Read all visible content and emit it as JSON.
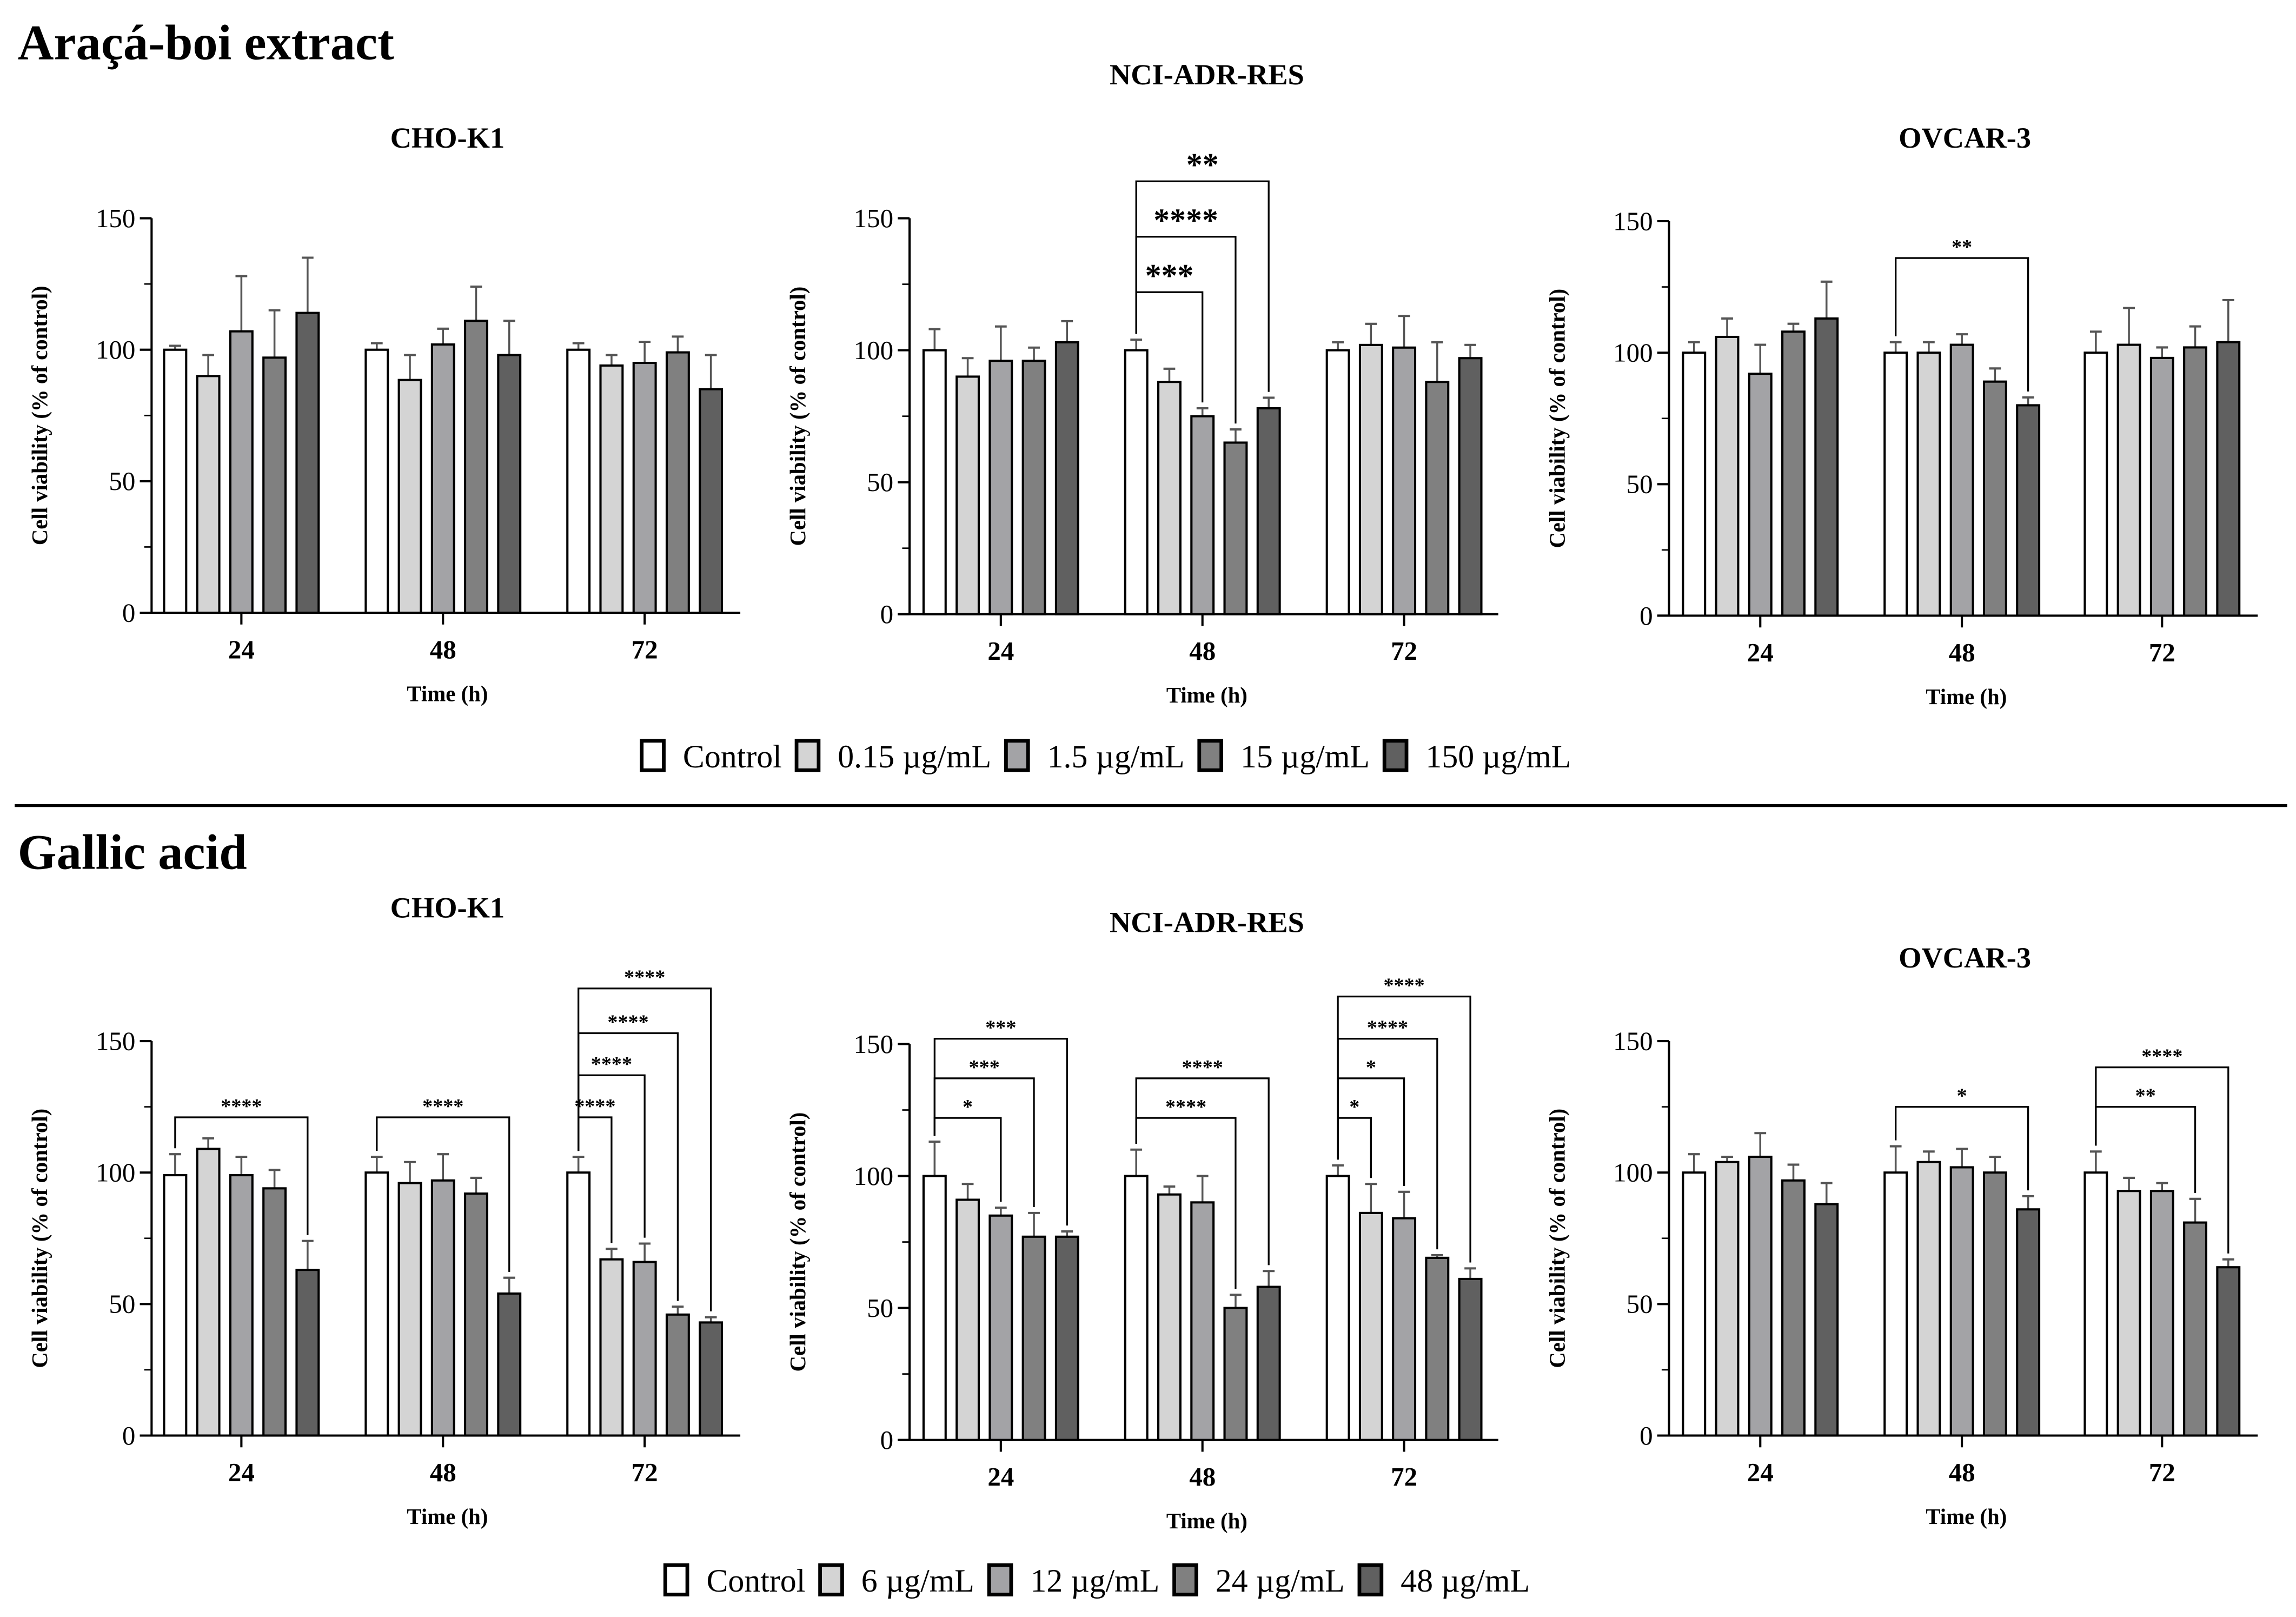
{
  "sections": [
    {
      "heading": "Araçá-boi extract",
      "legend": [
        "Control",
        "0.15 µg/mL",
        "1.5 µg/mL",
        "15 µg/mL",
        "150 µg/mL"
      ]
    },
    {
      "heading": "Gallic acid",
      "legend": [
        "Control",
        "6 µg/mL",
        "12 µg/mL",
        "24 µg/mL",
        "48 µg/mL"
      ]
    }
  ],
  "colors": [
    "#ffffff",
    "#d4d4d4",
    "#a3a3a6",
    "#808080",
    "#606060"
  ],
  "chart_data": [
    {
      "type": "bar",
      "section": 0,
      "title": "CHO-K1",
      "xlabel": "Time (h)",
      "ylabel": "Cell viability (% of control)",
      "categories": [
        "24",
        "48",
        "72"
      ],
      "ylim": [
        0,
        150
      ],
      "yticks": [
        "0",
        "50",
        "100",
        "150"
      ],
      "series": [
        {
          "name": "Control",
          "values": [
            100,
            100,
            100
          ],
          "err": [
            101.5,
            102.5,
            102.5
          ]
        },
        {
          "name": "0.15 µg/mL",
          "values": [
            90,
            88.5,
            94
          ],
          "err": [
            98,
            98,
            98
          ]
        },
        {
          "name": "1.5 µg/mL",
          "values": [
            107,
            102,
            95
          ],
          "err": [
            128,
            108,
            103
          ]
        },
        {
          "name": "15 µg/mL",
          "values": [
            97,
            111,
            99
          ],
          "err": [
            115,
            124,
            105
          ]
        },
        {
          "name": "150 µg/mL",
          "values": [
            114,
            98,
            85
          ],
          "err": [
            135,
            111,
            98
          ]
        }
      ],
      "sig": []
    },
    {
      "type": "bar",
      "section": 0,
      "title": "NCI-ADR-RES",
      "xlabel": "Time (h)",
      "ylabel": "Cell viability (% of control)",
      "categories": [
        "24",
        "48",
        "72"
      ],
      "ylim": [
        0,
        150
      ],
      "yticks": [
        "0",
        "50",
        "100",
        "150"
      ],
      "series": [
        {
          "name": "Control",
          "values": [
            100,
            100,
            100
          ],
          "err": [
            108,
            104,
            103
          ]
        },
        {
          "name": "0.15 µg/mL",
          "values": [
            90,
            88,
            102
          ],
          "err": [
            97,
            93,
            110
          ]
        },
        {
          "name": "1.5 µg/mL",
          "values": [
            96,
            75,
            101
          ],
          "err": [
            109,
            78,
            113
          ]
        },
        {
          "name": "15 µg/mL",
          "values": [
            96,
            65,
            88
          ],
          "err": [
            101,
            70,
            103
          ]
        },
        {
          "name": "150 µg/mL",
          "values": [
            103,
            78,
            97
          ],
          "err": [
            111,
            82,
            102
          ]
        }
      ],
      "sig": [
        {
          "group": 1,
          "to": 2,
          "level": 122,
          "label": "***"
        },
        {
          "group": 1,
          "to": 3,
          "level": 143,
          "label": "****"
        },
        {
          "group": 1,
          "to": 4,
          "level": 164,
          "label": "**"
        }
      ]
    },
    {
      "type": "bar",
      "section": 0,
      "title": "OVCAR-3",
      "xlabel": "Time (h)",
      "ylabel": "Cell viability (% of control)",
      "categories": [
        "24",
        "48",
        "72"
      ],
      "ylim": [
        0,
        150
      ],
      "yticks": [
        "0",
        "50",
        "100",
        "150"
      ],
      "series": [
        {
          "name": "Control",
          "values": [
            100,
            100,
            100
          ],
          "err": [
            104,
            104,
            108
          ]
        },
        {
          "name": "0.15 µg/mL",
          "values": [
            106,
            100,
            103
          ],
          "err": [
            113,
            104,
            117
          ]
        },
        {
          "name": "1.5 µg/mL",
          "values": [
            92,
            103,
            98
          ],
          "err": [
            103,
            107,
            102
          ]
        },
        {
          "name": "15 µg/mL",
          "values": [
            108,
            89,
            102
          ],
          "err": [
            111,
            94,
            110
          ]
        },
        {
          "name": "150 µg/mL",
          "values": [
            113,
            80,
            104
          ],
          "err": [
            127,
            83,
            120
          ]
        }
      ],
      "sig": [
        {
          "group": 1,
          "to": 4,
          "level": 136,
          "label": "**"
        }
      ]
    },
    {
      "type": "bar",
      "section": 1,
      "title": "CHO-K1",
      "xlabel": "Time (h)",
      "ylabel": "Cell viability (% of control)",
      "categories": [
        "24",
        "48",
        "72"
      ],
      "ylim": [
        0,
        150
      ],
      "yticks": [
        "0",
        "50",
        "100",
        "150"
      ],
      "series": [
        {
          "name": "Control",
          "values": [
            99,
            100,
            100
          ],
          "err": [
            107,
            106,
            106
          ]
        },
        {
          "name": "6 µg/mL",
          "values": [
            109,
            96,
            67
          ],
          "err": [
            113,
            104,
            71
          ]
        },
        {
          "name": "12 µg/mL",
          "values": [
            99,
            97,
            66
          ],
          "err": [
            106,
            107,
            73
          ]
        },
        {
          "name": "24 µg/mL",
          "values": [
            94,
            92,
            46
          ],
          "err": [
            101,
            98,
            49
          ]
        },
        {
          "name": "48 µg/mL",
          "values": [
            63,
            54,
            43
          ],
          "err": [
            74,
            60,
            45
          ]
        }
      ],
      "sig": [
        {
          "group": 0,
          "to": 4,
          "level": 121,
          "label": "****"
        },
        {
          "group": 1,
          "to": 4,
          "level": 121,
          "label": "****"
        },
        {
          "group": 2,
          "to": 1,
          "level": 121,
          "label": "****"
        },
        {
          "group": 2,
          "to": 2,
          "level": 137,
          "label": "****"
        },
        {
          "group": 2,
          "to": 3,
          "level": 153,
          "label": "****"
        },
        {
          "group": 2,
          "to": 4,
          "level": 170,
          "label": "****"
        }
      ]
    },
    {
      "type": "bar",
      "section": 1,
      "title": "NCI-ADR-RES",
      "xlabel": "Time (h)",
      "ylabel": "Cell viability (% of control)",
      "categories": [
        "24",
        "48",
        "72"
      ],
      "ylim": [
        0,
        150
      ],
      "yticks": [
        "0",
        "50",
        "100",
        "150"
      ],
      "series": [
        {
          "name": "Control",
          "values": [
            100,
            100,
            100
          ],
          "err": [
            113,
            110,
            104
          ]
        },
        {
          "name": "6 µg/mL",
          "values": [
            91,
            93,
            86
          ],
          "err": [
            97,
            96,
            97
          ]
        },
        {
          "name": "12 µg/mL",
          "values": [
            85,
            90,
            84
          ],
          "err": [
            88,
            100,
            94
          ]
        },
        {
          "name": "24 µg/mL",
          "values": [
            77,
            50,
            69
          ],
          "err": [
            86,
            55,
            70
          ]
        },
        {
          "name": "48 µg/mL",
          "values": [
            77,
            58,
            61
          ],
          "err": [
            79,
            64,
            65
          ]
        }
      ],
      "sig": [
        {
          "group": 0,
          "to": 2,
          "level": 122,
          "label": "*"
        },
        {
          "group": 0,
          "to": 3,
          "level": 137,
          "label": "***"
        },
        {
          "group": 0,
          "to": 4,
          "level": 152,
          "label": "***"
        },
        {
          "group": 1,
          "to": 3,
          "level": 122,
          "label": "****"
        },
        {
          "group": 1,
          "to": 4,
          "level": 137,
          "label": "****"
        },
        {
          "group": 2,
          "to": 1,
          "level": 122,
          "label": "*"
        },
        {
          "group": 2,
          "to": 2,
          "level": 137,
          "label": "*"
        },
        {
          "group": 2,
          "to": 3,
          "level": 152,
          "label": "****"
        },
        {
          "group": 2,
          "to": 4,
          "level": 168,
          "label": "****"
        }
      ]
    },
    {
      "type": "bar",
      "section": 1,
      "title": "OVCAR-3",
      "xlabel": "Time (h)",
      "ylabel": "Cell viability (% of control)",
      "categories": [
        "24",
        "48",
        "72"
      ],
      "ylim": [
        0,
        150
      ],
      "yticks": [
        "0",
        "50",
        "100",
        "150"
      ],
      "series": [
        {
          "name": "Control",
          "values": [
            100,
            100,
            100
          ],
          "err": [
            107,
            110,
            108
          ]
        },
        {
          "name": "6 µg/mL",
          "values": [
            104,
            104,
            93
          ],
          "err": [
            106,
            108,
            98
          ]
        },
        {
          "name": "12 µg/mL",
          "values": [
            106,
            102,
            93
          ],
          "err": [
            115,
            109,
            96
          ]
        },
        {
          "name": "24 µg/mL",
          "values": [
            97,
            100,
            81
          ],
          "err": [
            103,
            106,
            90
          ]
        },
        {
          "name": "48 µg/mL",
          "values": [
            88,
            86,
            64
          ],
          "err": [
            96,
            91,
            67
          ]
        }
      ],
      "sig": [
        {
          "group": 1,
          "to": 4,
          "level": 125,
          "label": "*"
        },
        {
          "group": 2,
          "to": 3,
          "level": 125,
          "label": "**"
        },
        {
          "group": 2,
          "to": 4,
          "level": 140,
          "label": "****"
        }
      ]
    }
  ]
}
